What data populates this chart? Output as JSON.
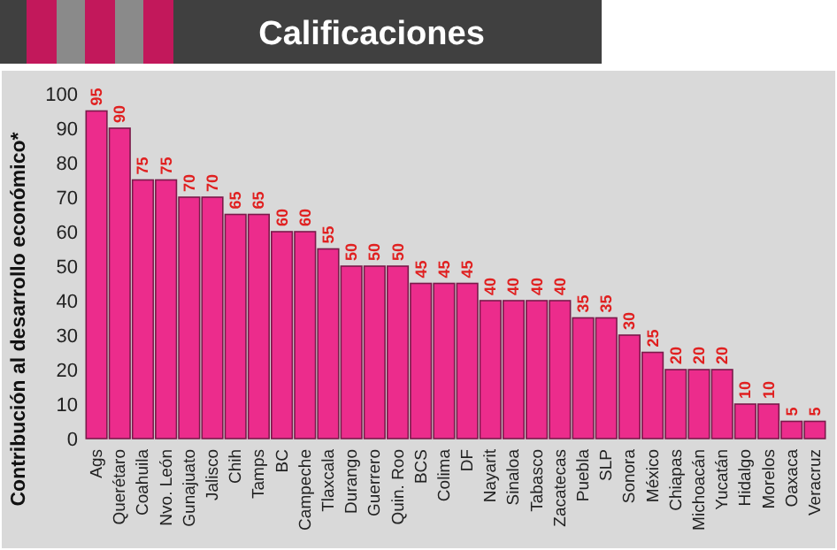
{
  "chart_data": {
    "type": "bar",
    "title": "Calificaciones",
    "ylabel": "Contribución al desarrollo económico*",
    "categories": [
      "Ags",
      "Querétaro",
      "Coahuila",
      "Nvo. León",
      "Gunajuato",
      "Jalisco",
      "Chih",
      "Tamps",
      "BC",
      "Campeche",
      "Tlaxcala",
      "Durango",
      "Guerrero",
      "Quin. Roo",
      "BCS",
      "Colima",
      "DF",
      "Nayarit",
      "Sinaloa",
      "Tabasco",
      "Zacatecas",
      "Puebla",
      "SLP",
      "Sonora",
      "México",
      "Chiapas",
      "Michoacán",
      "Yucatán",
      "Hidalgo",
      "Morelos",
      "Oaxaca",
      "Veracruz"
    ],
    "values": [
      95,
      90,
      75,
      75,
      70,
      70,
      65,
      65,
      60,
      60,
      55,
      50,
      50,
      50,
      45,
      45,
      45,
      40,
      40,
      40,
      40,
      35,
      35,
      30,
      25,
      20,
      20,
      20,
      10,
      10,
      5,
      5
    ],
    "color": "#ec2c8c",
    "ylim": [
      0,
      100
    ],
    "yticks": [
      0,
      10,
      20,
      30,
      40,
      50,
      60,
      70,
      80,
      90,
      100
    ],
    "data_labels": true,
    "grid": false
  }
}
